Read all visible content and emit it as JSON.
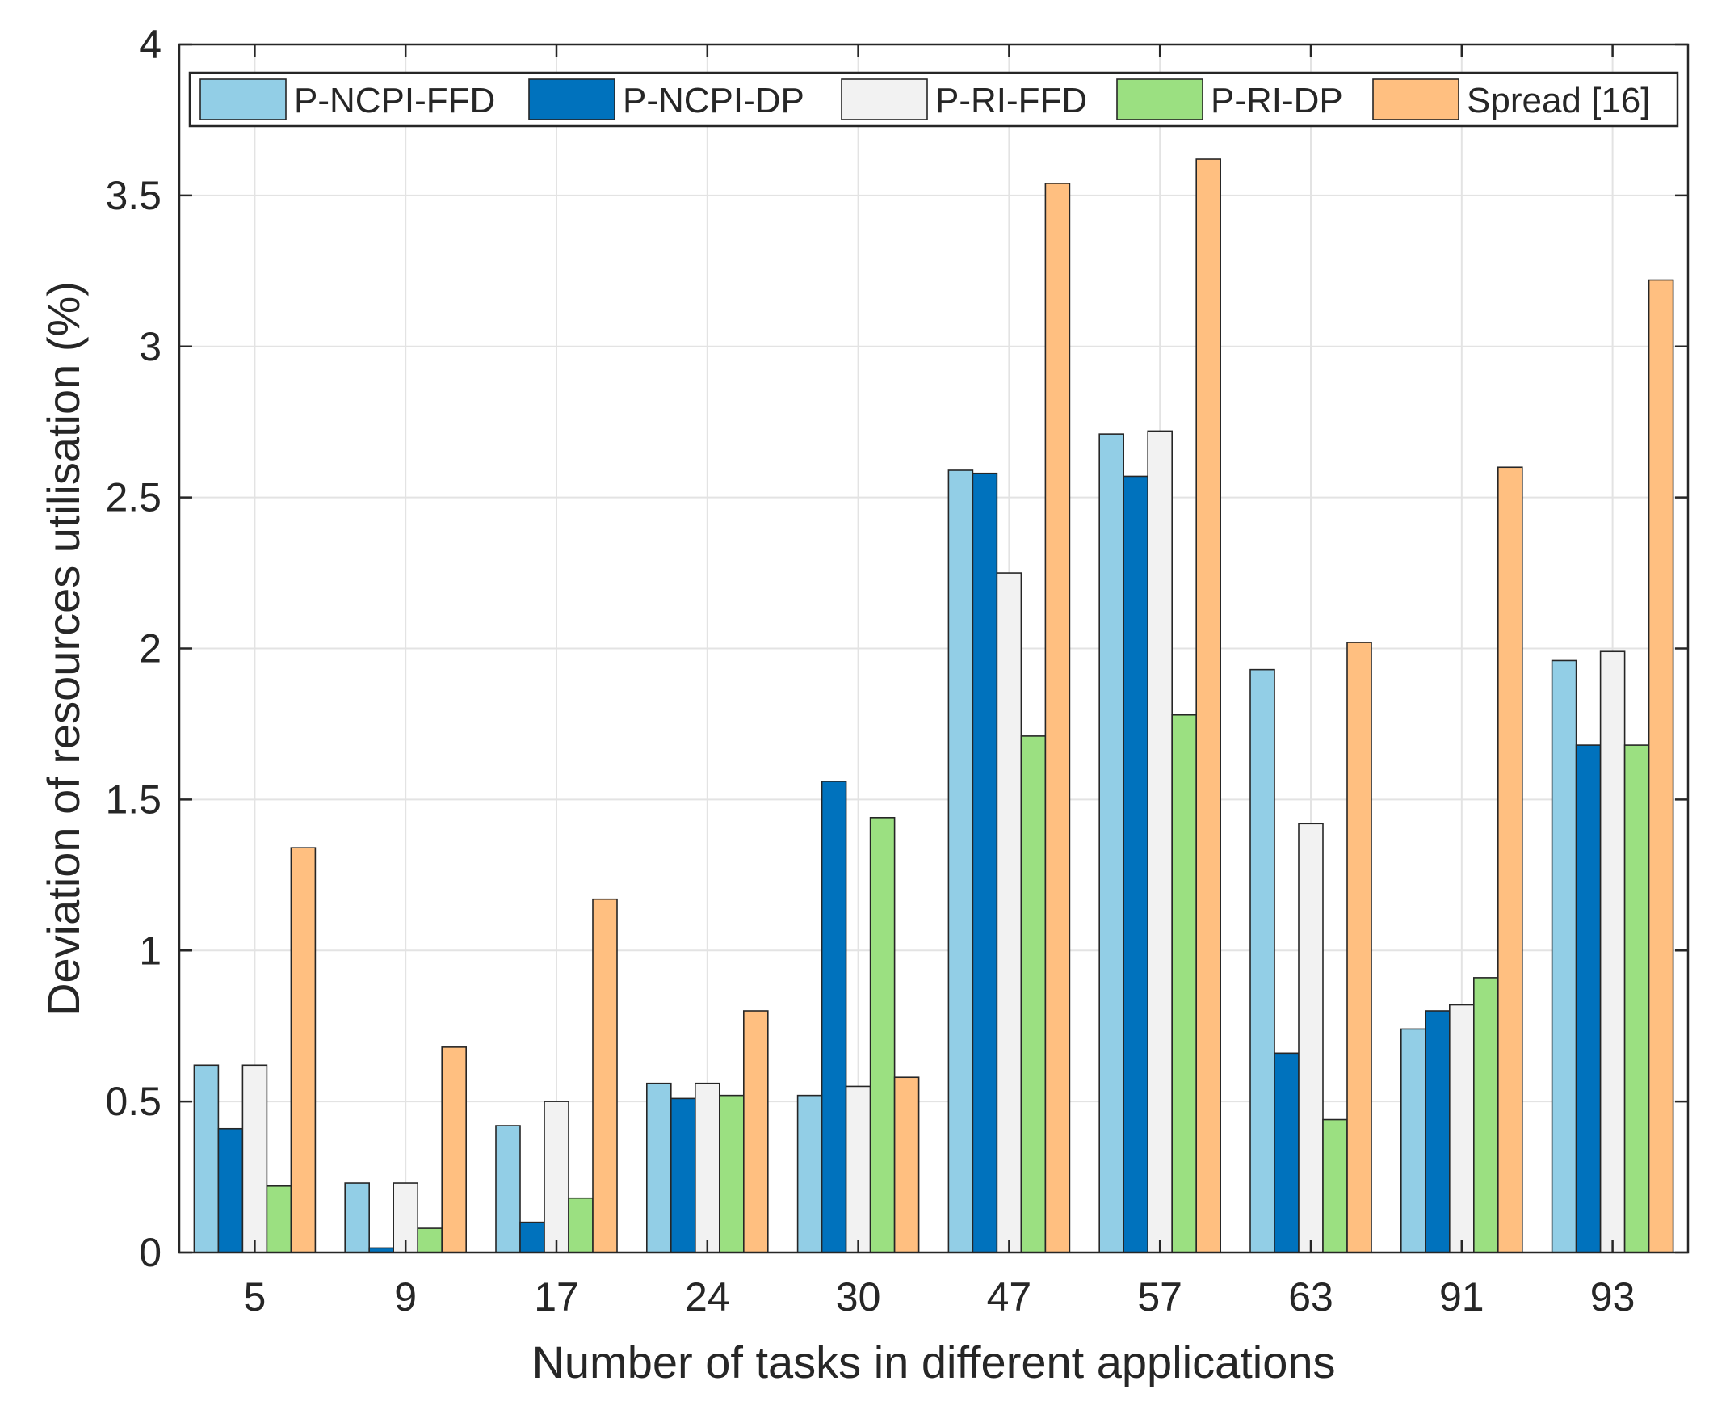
{
  "chart_data": {
    "type": "bar",
    "title": "",
    "xlabel": "Number of tasks in different applications",
    "ylabel": "Deviation of resources utilisation (%)",
    "ylim": [
      0,
      4
    ],
    "yticks": [
      "0",
      "0.5",
      "1",
      "1.5",
      "2",
      "2.5",
      "3",
      "3.5",
      "4"
    ],
    "ytick_values": [
      0,
      0.5,
      1,
      1.5,
      2,
      2.5,
      3,
      3.5,
      4
    ],
    "grid": true,
    "legend_position": "top",
    "categories": [
      "5",
      "9",
      "17",
      "24",
      "30",
      "47",
      "57",
      "63",
      "91",
      "93"
    ],
    "series": [
      {
        "name": "P-NCPI-FFD",
        "color": "#92CEE6",
        "values": [
          0.62,
          0.23,
          0.42,
          0.56,
          0.52,
          2.59,
          2.71,
          1.93,
          0.74,
          1.96
        ]
      },
      {
        "name": "P-NCPI-DP",
        "color": "#0072BD",
        "values": [
          0.41,
          0.015,
          0.1,
          0.51,
          1.56,
          2.58,
          2.57,
          0.66,
          0.8,
          1.68
        ]
      },
      {
        "name": "P-RI-FFD",
        "color": "#F2F2F2",
        "values": [
          0.62,
          0.23,
          0.5,
          0.56,
          0.55,
          2.25,
          2.72,
          1.42,
          0.82,
          1.99
        ]
      },
      {
        "name": "P-RI-DP",
        "color": "#9BE081",
        "values": [
          0.22,
          0.08,
          0.18,
          0.52,
          1.44,
          1.71,
          1.78,
          0.44,
          0.91,
          1.68
        ]
      },
      {
        "name": "Spread [16]",
        "color": "#FFBF80",
        "values": [
          1.34,
          0.68,
          1.17,
          0.8,
          0.58,
          3.54,
          3.62,
          2.02,
          2.6,
          3.22
        ]
      }
    ]
  }
}
